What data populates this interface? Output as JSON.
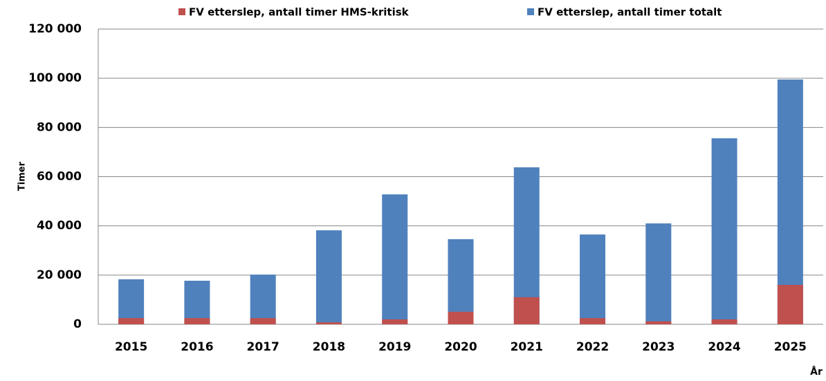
{
  "chart_data": {
    "type": "bar",
    "y_label": "Timer",
    "x_label": "År",
    "categories": [
      "2015",
      "2016",
      "2017",
      "2018",
      "2019",
      "2020",
      "2021",
      "2022",
      "2023",
      "2024",
      "2025"
    ],
    "series": [
      {
        "name": "FV etterslep, antall timer HMS-kritisk",
        "color": "#c0504d",
        "values": [
          2500,
          2500,
          2500,
          800,
          2000,
          5100,
          11000,
          2500,
          1200,
          2000,
          16000
        ]
      },
      {
        "name": "FV etterslep, antall timer totalt",
        "color": "#4f81bd",
        "values": [
          18300,
          17700,
          20200,
          38200,
          52800,
          34600,
          63800,
          36500,
          41000,
          75600,
          99500
        ]
      }
    ],
    "ylim": [
      0,
      120000
    ],
    "yticks": [
      0,
      {
        "value": 20000,
        "label": "20 000"
      },
      {
        "value": 40000,
        "label": "40 000"
      },
      {
        "value": 60000,
        "label": "60 000"
      },
      {
        "value": 80000,
        "label": "80 000"
      },
      {
        "value": 100000,
        "label": "100 000"
      },
      {
        "value": 120000,
        "label": "120 000"
      }
    ],
    "grid": true
  }
}
